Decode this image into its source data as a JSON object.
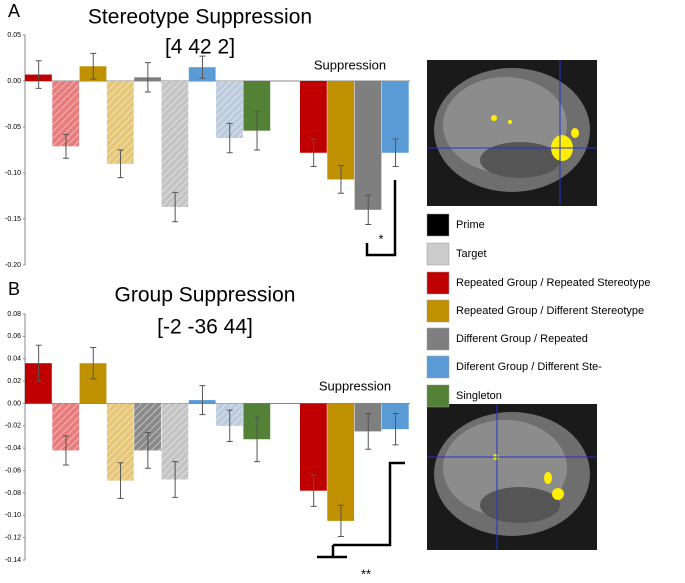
{
  "chart_data": [
    {
      "type": "bar",
      "panel": "A",
      "title": "Stereotype Suppression",
      "subtitle": "[4 42 2]",
      "annotation": "Suppression",
      "significance": "*",
      "values": [
        0.007,
        -0.071,
        0.016,
        -0.09,
        0.004,
        -0.137,
        0.015,
        -0.062,
        -0.054,
        -0.078,
        -0.107,
        -0.14,
        -0.078
      ],
      "errors": [
        0.015,
        0.013,
        0.014,
        0.015,
        0.016,
        0.016,
        0.012,
        0.016,
        0.021,
        0.015,
        0.015,
        0.016,
        0.015
      ],
      "colors": [
        "#c00000",
        "#e87b7b",
        "#bf9000",
        "#e6c777",
        "#7f7f7f",
        "#c4c4c4",
        "#5b9bd5",
        "#bccbdb",
        "#538135",
        "#c00000",
        "#bf9000",
        "#7f7f7f",
        "#5b9bd5"
      ],
      "hatched": [
        false,
        true,
        false,
        true,
        false,
        true,
        false,
        true,
        false,
        false,
        false,
        false,
        false
      ],
      "ylim": [
        -0.2,
        0.05
      ],
      "yticks": [
        0.05,
        {
          "value": 0,
          "label": "0.00"
        },
        -0.05,
        {
          "value": -0.1,
          "label": "-0.10"
        },
        -0.15,
        {
          "value": -0.2,
          "label": "-0.20"
        }
      ]
    },
    {
      "type": "bar",
      "panel": "B",
      "title": "Group Suppression",
      "subtitle": "[-2 -36 44]",
      "annotation": "Suppression",
      "significance": "**",
      "values": [
        0.036,
        -0.042,
        0.036,
        -0.069,
        -0.042,
        -0.068,
        0.003,
        -0.02,
        -0.032,
        -0.078,
        -0.105,
        -0.025,
        -0.023
      ],
      "errors": [
        0.016,
        0.013,
        0.014,
        0.016,
        0.016,
        0.016,
        0.013,
        0.014,
        0.02,
        0.014,
        0.014,
        0.016,
        0.014
      ],
      "colors": [
        "#c00000",
        "#e87b7b",
        "#bf9000",
        "#e6c777",
        "#8a8a8a",
        "#c4c4c4",
        "#5b9bd5",
        "#bccbdb",
        "#538135",
        "#c00000",
        "#bf9000",
        "#7f7f7f",
        "#5b9bd5"
      ],
      "hatched": [
        false,
        true,
        false,
        true,
        true,
        true,
        false,
        true,
        false,
        false,
        false,
        false,
        false
      ],
      "ylim": [
        -0.14,
        0.08
      ],
      "yticks": [
        0.08,
        0.06,
        0.04,
        0.02,
        {
          "value": 0,
          "label": "0.00"
        },
        -0.02,
        -0.04,
        -0.06,
        -0.08,
        {
          "value": -0.1,
          "label": "-0.10"
        },
        -0.12,
        -0.14
      ]
    }
  ],
  "legend": [
    {
      "name": "Prime",
      "color": "#000000"
    },
    {
      "name": "Target",
      "color": "#cccccc"
    },
    {
      "name": "Repeated Group / Repeated Stereotype",
      "color": "#c00000"
    },
    {
      "name": "Repeated Group / Different Stereotype",
      "color": "#bf9000"
    },
    {
      "name": "Different Group / Repeated",
      "color": "#7f7f7f"
    },
    {
      "name": "Diferent Group / Different Ste-",
      "color": "#5b9bd5"
    },
    {
      "name": "Singleton",
      "color": "#538135"
    }
  ]
}
